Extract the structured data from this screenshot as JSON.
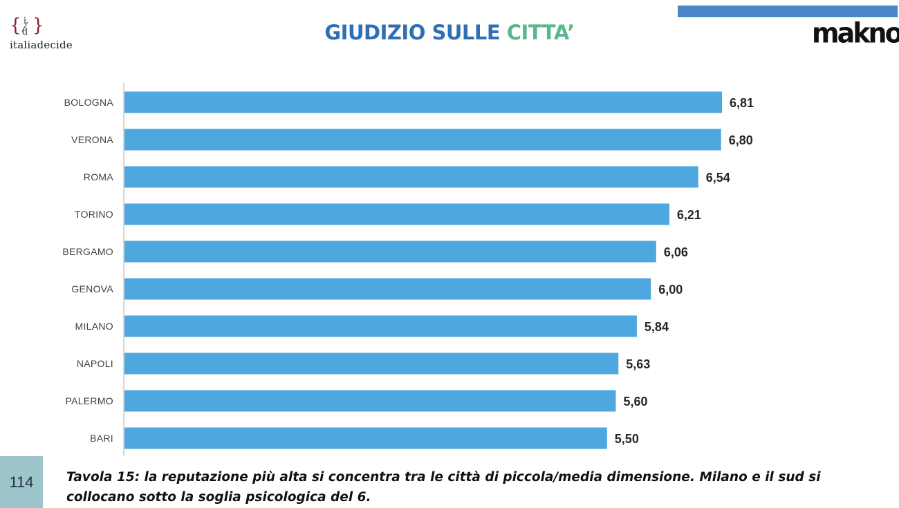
{
  "logo_left": {
    "text": "italiadecide",
    "mark_top": "i",
    "mark_bottom": "d"
  },
  "title": {
    "part1": "GIUDIZIO SULLE",
    "part2": "CITTA’"
  },
  "logo_right": {
    "text": "makno"
  },
  "colors": {
    "bar": "#4ea8df",
    "title_blue": "#2f6fb5",
    "title_green": "#5bb68c",
    "top_bar": "#4a87c8",
    "page_badge": "#9ec5cc"
  },
  "page_number": "114",
  "caption": "Tavola 15: la reputazione più alta si concentra tra  le città di piccola/media dimensione.  Milano e il sud si collocano sotto la soglia psicologica del 6.",
  "chart_data": {
    "type": "bar",
    "orientation": "horizontal",
    "categories": [
      "BOLOGNA",
      "VERONA",
      "ROMA",
      "TORINO",
      "BERGAMO",
      "GENOVA",
      "MILANO",
      "NAPOLI",
      "PALERMO",
      "BARI"
    ],
    "values": [
      6.81,
      6.8,
      6.54,
      6.21,
      6.06,
      6.0,
      5.84,
      5.63,
      5.6,
      5.5
    ],
    "data_labels": [
      "6,81",
      "6,80",
      "6,54",
      "6,21",
      "6,06",
      "6,00",
      "5,84",
      "5,63",
      "5,60",
      "5,50"
    ],
    "xlim": [
      0,
      6.81
    ],
    "grid": false,
    "legend": "none"
  }
}
